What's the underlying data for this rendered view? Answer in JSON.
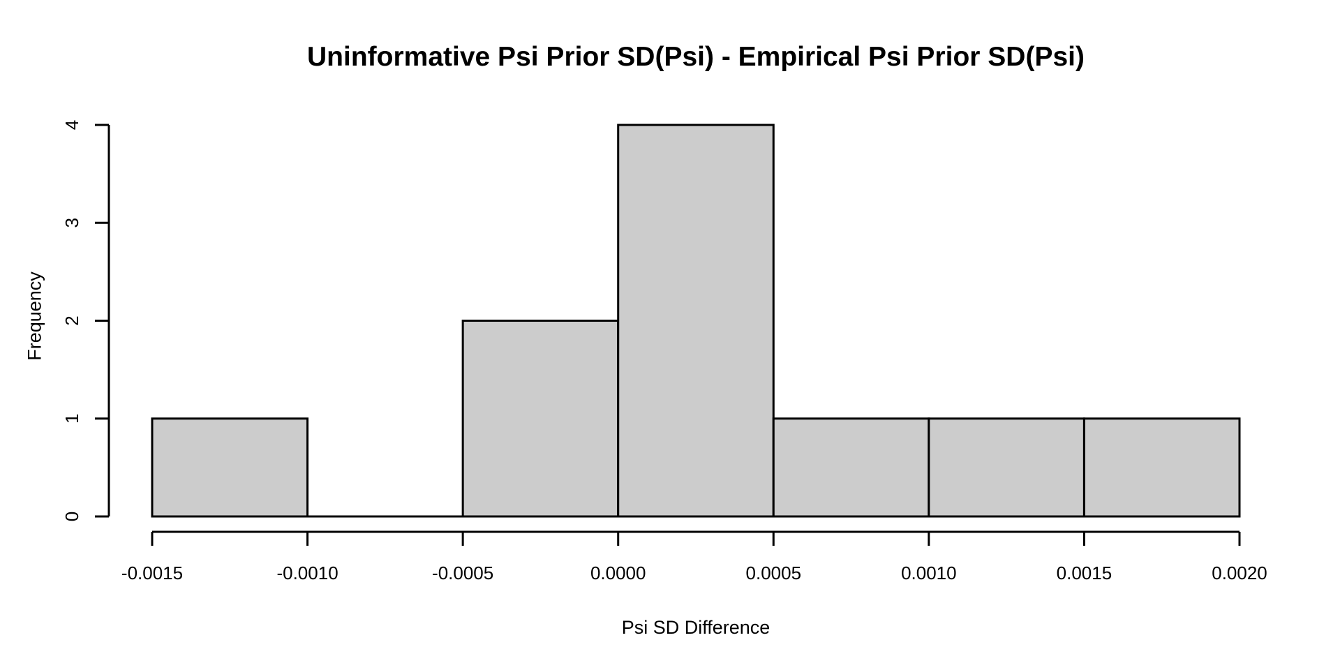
{
  "figure": {
    "background": "#ffffff"
  },
  "chart_data": {
    "type": "bar",
    "variant": "histogram",
    "title": "Uninformative Psi Prior SD(Psi) - Empirical Psi Prior SD(Psi)",
    "xlabel": "Psi SD Difference",
    "ylabel": "Frequency",
    "bin_edges": [
      -0.0015,
      -0.001,
      -0.0005,
      0.0,
      0.0005,
      0.001,
      0.0015,
      0.002
    ],
    "counts": [
      1,
      0,
      2,
      4,
      1,
      1,
      1
    ],
    "xlim": [
      -0.0015,
      0.002
    ],
    "ylim": [
      0,
      4
    ],
    "x_tick_values": [
      -0.0015,
      -0.001,
      -0.0005,
      0.0,
      0.0005,
      0.001,
      0.0015,
      0.002
    ],
    "x_tick_labels": [
      "-0.0015",
      "-0.0010",
      "-0.0005",
      "0.0000",
      "0.0005",
      "0.0010",
      "0.0015",
      "0.0020"
    ],
    "y_tick_values": [
      0,
      1,
      2,
      3,
      4
    ],
    "y_tick_labels": [
      "0",
      "1",
      "2",
      "3",
      "4"
    ],
    "bar_fill": "#cccccc",
    "bar_border": "#000000",
    "axis_color": "#000000",
    "grid": false,
    "legend": false
  }
}
